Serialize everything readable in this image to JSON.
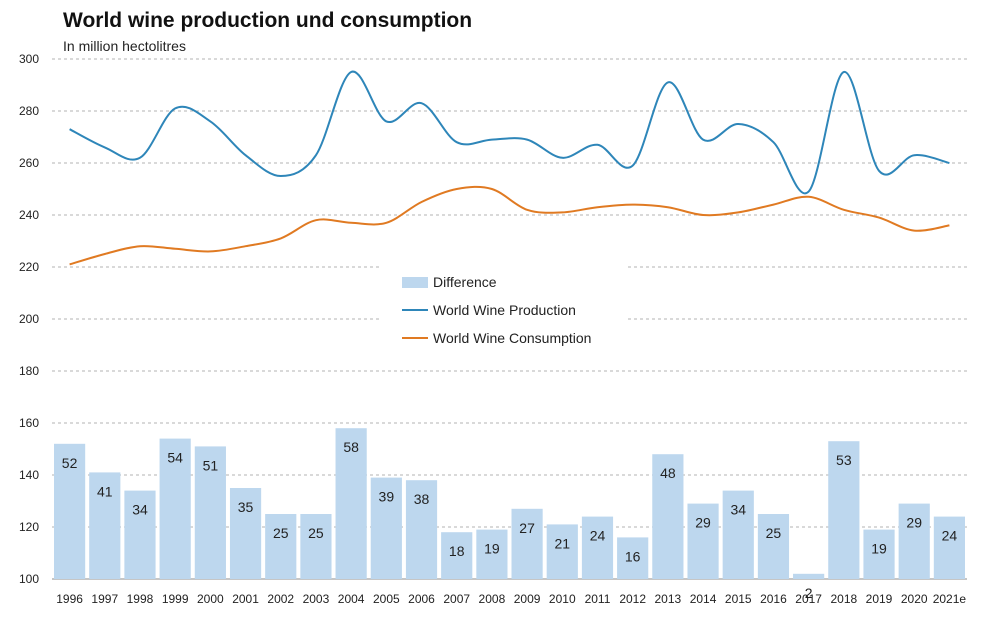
{
  "chart_data": {
    "type": "bar+line",
    "title": "World wine production und consumption",
    "subtitle": "In million hectolitres",
    "categories": [
      "1996",
      "1997",
      "1998",
      "1999",
      "2000",
      "2001",
      "2002",
      "2003",
      "2004",
      "2005",
      "2006",
      "2007",
      "2008",
      "2009",
      "2010",
      "2011",
      "2012",
      "2013",
      "2014",
      "2015",
      "2016",
      "2017",
      "2018",
      "2019",
      "2020",
      "2021e"
    ],
    "ylim": [
      100,
      300
    ],
    "yticks": [
      100,
      120,
      140,
      160,
      180,
      200,
      220,
      240,
      260,
      280,
      300
    ],
    "grid": true,
    "legend_position": "center",
    "series": [
      {
        "name": "Difference",
        "kind": "bar",
        "color": "#bdd7ee",
        "values": [
          52,
          41,
          34,
          54,
          51,
          35,
          25,
          25,
          58,
          39,
          38,
          18,
          19,
          27,
          21,
          24,
          16,
          48,
          29,
          34,
          25,
          2,
          53,
          19,
          29,
          24
        ],
        "data_labels": [
          "52",
          "41",
          "34",
          "54",
          "51",
          "35",
          "25",
          "25",
          "58",
          "39",
          "38",
          "18",
          "19",
          "27",
          "21",
          "24",
          "16",
          "48",
          "29",
          "34",
          "25",
          "2",
          "53",
          "19",
          "29",
          "24"
        ]
      },
      {
        "name": "World Wine Production",
        "kind": "line",
        "color": "#2e86b9",
        "values": [
          273,
          266,
          262,
          281,
          276,
          263,
          255,
          263,
          295,
          276,
          283,
          268,
          269,
          269,
          262,
          267,
          259,
          291,
          269,
          275,
          268,
          249,
          295,
          257,
          263,
          260
        ]
      },
      {
        "name": "World Wine Consumption",
        "kind": "line",
        "color": "#e07a22",
        "values": [
          221,
          225,
          228,
          227,
          226,
          228,
          231,
          238,
          237,
          237,
          245,
          250,
          250,
          242,
          241,
          243,
          244,
          243,
          240,
          241,
          244,
          247,
          242,
          239,
          234,
          236
        ]
      }
    ]
  }
}
